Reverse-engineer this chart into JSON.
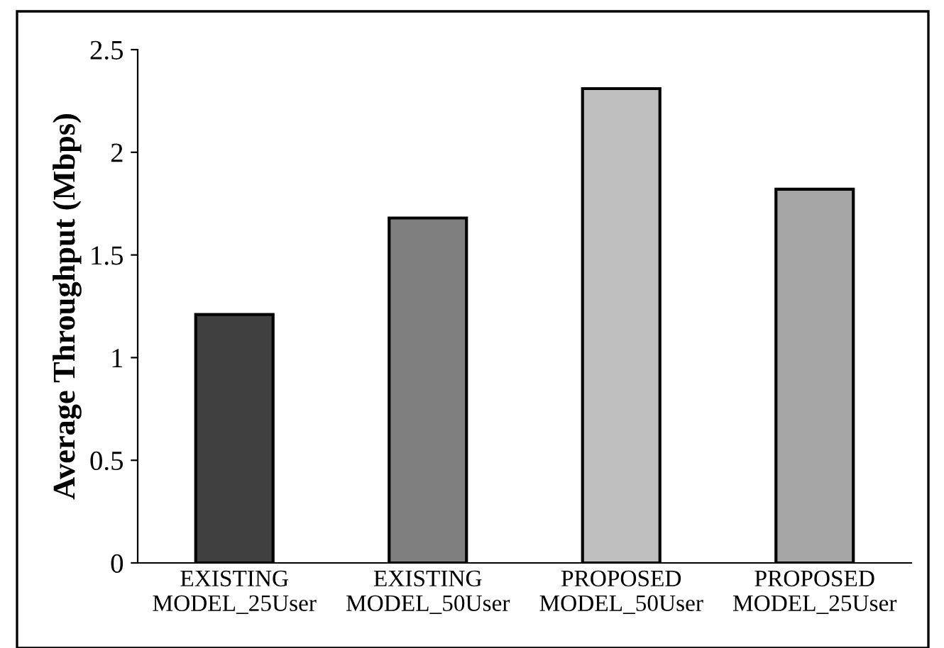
{
  "chart_data": {
    "type": "bar",
    "ylabel": "Average Throughput (Mbps)",
    "categories": [
      "EXISTING\nMODEL_25User",
      "EXISTING\nMODEL_50User",
      "PROPOSED\nMODEL_50User",
      "PROPOSED\nMODEL_25User"
    ],
    "values": [
      1.21,
      1.68,
      2.31,
      1.82
    ],
    "colors": [
      "#404040",
      "#7f7f7f",
      "#bfbfbf",
      "#a5a5a5"
    ],
    "ylim": [
      0,
      2.5
    ],
    "yticks": [
      0,
      0.5,
      1,
      1.5,
      2,
      2.5
    ],
    "grid": false,
    "legend": false
  }
}
